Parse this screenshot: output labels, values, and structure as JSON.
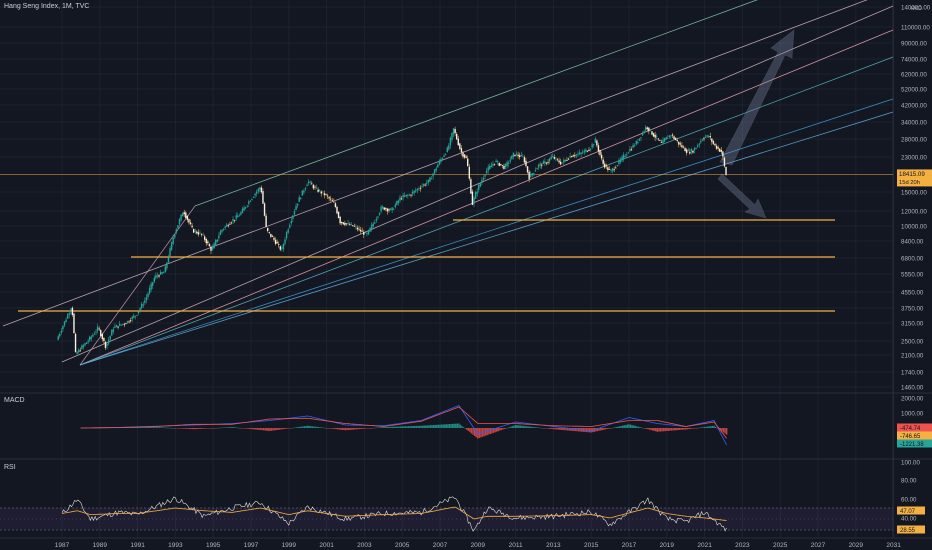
{
  "header": {
    "title": "Hang Seng Index, 1M, TVC"
  },
  "panes": {
    "macd_label": "MACD",
    "rsi_label": "RSI"
  },
  "chart_data": {
    "type": "line",
    "title": "Hang Seng Index, 1M, TVC",
    "currency": "HKD",
    "log_scale": true,
    "grid": true,
    "x_tick_labels": [
      "1987",
      "1989",
      "1991",
      "1993",
      "1995",
      "1997",
      "1999",
      "2001",
      "2003",
      "2005",
      "2007",
      "2009",
      "2011",
      "2013",
      "2015",
      "2017",
      "2019",
      "2021",
      "2023",
      "2025",
      "2027",
      "2029",
      "2031"
    ],
    "y_tick_labels": [
      "140000.00",
      "110000.00",
      "90000.00",
      "74000.00",
      "62000.00",
      "52000.00",
      "42000.00",
      "34000.00",
      "28000.00",
      "23000.00",
      "15000.00",
      "12000.00",
      "10000.00",
      "8400.00",
      "6800.00",
      "5550.00",
      "4550.00",
      "3750.00",
      "3150.00",
      "2500.00",
      "2100.00",
      "1740.00",
      "1460.00"
    ],
    "last_price": "18415.09",
    "countdown": "15d 20h",
    "series": [
      {
        "name": "Hang Seng Index",
        "x": [
          1986.8,
          1987.6,
          1987.8,
          1988.5,
          1989.0,
          1989.4,
          1989.8,
          1990.5,
          1991.0,
          1991.5,
          1992.0,
          1992.5,
          1993.0,
          1993.5,
          1994.0,
          1994.5,
          1995.0,
          1995.5,
          1996.0,
          1996.5,
          1997.0,
          1997.6,
          1997.9,
          1998.3,
          1998.7,
          1999.0,
          1999.5,
          2000.1,
          2000.5,
          2001.0,
          2001.5,
          2001.8,
          2002.5,
          2003.2,
          2003.6,
          2004.0,
          2004.5,
          2005.0,
          2005.5,
          2006.0,
          2006.5,
          2007.0,
          2007.5,
          2007.8,
          2008.2,
          2008.5,
          2008.8,
          2009.0,
          2009.5,
          2010.0,
          2010.5,
          2011.0,
          2011.5,
          2011.8,
          2012.3,
          2012.8,
          2013.0,
          2013.5,
          2014.0,
          2014.5,
          2015.0,
          2015.3,
          2015.7,
          2016.1,
          2016.5,
          2017.0,
          2017.5,
          2018.0,
          2018.3,
          2018.8,
          2019.0,
          2019.3,
          2019.8,
          2020.2,
          2020.5,
          2021.0,
          2021.3,
          2021.6,
          2022.0,
          2022.2
        ],
        "values": [
          2600,
          3900,
          2200,
          2600,
          3000,
          2400,
          3000,
          3200,
          3500,
          4200,
          5500,
          5800,
          9000,
          12000,
          9500,
          9000,
          7500,
          9500,
          10500,
          11500,
          13500,
          16000,
          9500,
          8500,
          7500,
          9500,
          13000,
          17000,
          15500,
          14500,
          13000,
          10500,
          10000,
          9000,
          10500,
          12500,
          12000,
          14000,
          14500,
          15800,
          17000,
          21000,
          25000,
          31500,
          24000,
          22000,
          13000,
          15000,
          19000,
          21500,
          20000,
          23500,
          22500,
          17800,
          20500,
          21500,
          22800,
          21000,
          23000,
          23500,
          25000,
          27500,
          21000,
          19000,
          21000,
          24000,
          27000,
          32500,
          30000,
          26500,
          28000,
          29500,
          26000,
          24000,
          24500,
          28500,
          29000,
          26000,
          24000,
          18415.09
        ]
      }
    ],
    "indicators": {
      "macd": {
        "y_tick_labels": [
          "2000.00",
          "1000.00",
          "0.00"
        ],
        "labels": [
          "-474.74",
          "-746.65",
          "-1221.38"
        ],
        "x": [
          1988,
          1990,
          1992,
          1994,
          1996,
          1998,
          2000,
          2002,
          2004,
          2006,
          2008,
          2009,
          2011,
          2013,
          2015,
          2017,
          2018.5,
          2020,
          2021.5,
          2022.2
        ],
        "histogram": [
          20,
          30,
          60,
          -80,
          60,
          -200,
          150,
          -150,
          60,
          150,
          300,
          -700,
          200,
          -80,
          -300,
          250,
          -250,
          -100,
          150,
          -474.74
        ],
        "macd": [
          0,
          40,
          120,
          200,
          300,
          500,
          800,
          200,
          150,
          500,
          1500,
          -400,
          400,
          100,
          -200,
          700,
          300,
          100,
          500,
          -1221.38
        ],
        "signal": [
          0,
          30,
          100,
          250,
          250,
          600,
          650,
          300,
          100,
          450,
          1400,
          300,
          300,
          150,
          100,
          500,
          500,
          100,
          400,
          -746.65
        ]
      },
      "rsi": {
        "y_tick_labels": [
          "100.00",
          "80.00",
          "60.00",
          "40.00"
        ],
        "labels": [
          "47.07",
          "28.55"
        ],
        "x": [
          1987,
          1987.8,
          1988.5,
          1990,
          1991,
          1993,
          1994.5,
          1996,
          1997.5,
          1999,
          2000,
          2002,
          2004,
          2006,
          2007.8,
          2008.8,
          2009.5,
          2011,
          2013,
          2015,
          2016,
          2018,
          2019,
          2020,
          2021,
          2022.2
        ],
        "values": [
          60,
          85,
          50,
          62,
          58,
          88,
          55,
          70,
          80,
          42,
          72,
          50,
          60,
          62,
          90,
          28,
          70,
          52,
          55,
          63,
          40,
          85,
          50,
          45,
          62,
          28.55
        ],
        "ma": [
          60,
          65,
          58,
          60,
          60,
          70,
          65,
          62,
          70,
          58,
          65,
          55,
          58,
          60,
          72,
          50,
          55,
          55,
          56,
          58,
          52,
          70,
          60,
          55,
          52,
          47.07
        ]
      }
    }
  }
}
